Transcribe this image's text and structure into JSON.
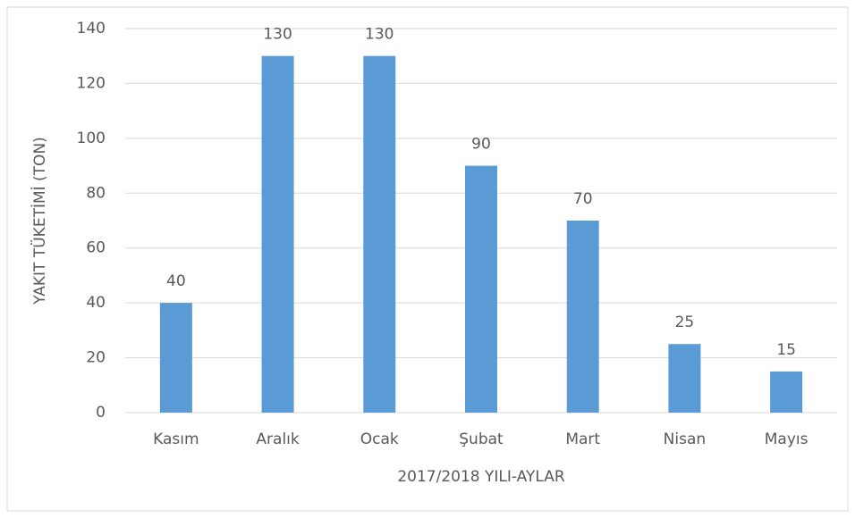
{
  "chart_data": {
    "type": "bar",
    "categories": [
      "Kasım",
      "Aralık",
      "Ocak",
      "Şubat",
      "Mart",
      "Nisan",
      "Mayıs"
    ],
    "values": [
      40,
      130,
      130,
      90,
      70,
      25,
      15
    ],
    "color": "#5b9bd5",
    "x_label": "2017/2018 YILI-AYLAR",
    "y_label": "YAKIT TÜKETİMİ (TON)",
    "ylim": [
      0,
      140
    ],
    "yticks": [
      0,
      20,
      40,
      60,
      80,
      100,
      120,
      140
    ],
    "grid": true
  }
}
